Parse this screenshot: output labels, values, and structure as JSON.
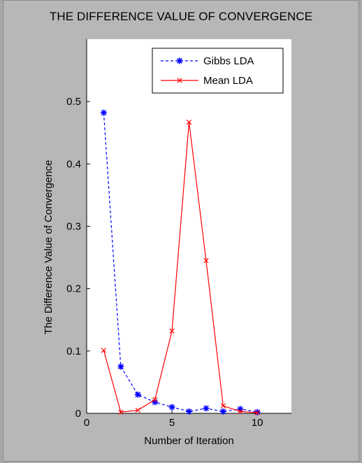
{
  "chart_data": {
    "type": "line",
    "title": "THE DIFFERENCE VALUE OF CONVERGENCE",
    "xlabel": "Number of Iteration",
    "ylabel": "The Difference Value of Convergence",
    "xlim": [
      0,
      12
    ],
    "ylim": [
      0,
      0.6
    ],
    "xticks": [
      0,
      5,
      10
    ],
    "yticks": [
      0,
      0.1,
      0.2,
      0.3,
      0.4,
      0.5
    ],
    "ytick_labels": [
      "0",
      "0.1",
      "0.2",
      "0.3",
      "0.4",
      "0.5"
    ],
    "legend_position": "top-right",
    "grid": false,
    "series": [
      {
        "name": "Gibbs LDA",
        "color": "#0000ff",
        "line_style": "dashed",
        "marker": "asterisk",
        "x": [
          1,
          2,
          3,
          4,
          5,
          6,
          7,
          8,
          9,
          10
        ],
        "y": [
          0.482,
          0.075,
          0.03,
          0.018,
          0.01,
          0.003,
          0.008,
          0.003,
          0.007,
          0.002
        ]
      },
      {
        "name": "Mean LDA",
        "color": "#ff0000",
        "line_style": "solid",
        "marker": "x",
        "x": [
          1,
          2,
          3,
          4,
          5,
          6,
          7,
          8,
          9,
          10
        ],
        "y": [
          0.101,
          0.002,
          0.005,
          0.022,
          0.132,
          0.467,
          0.245,
          0.012,
          0.003,
          0.001
        ]
      }
    ]
  }
}
